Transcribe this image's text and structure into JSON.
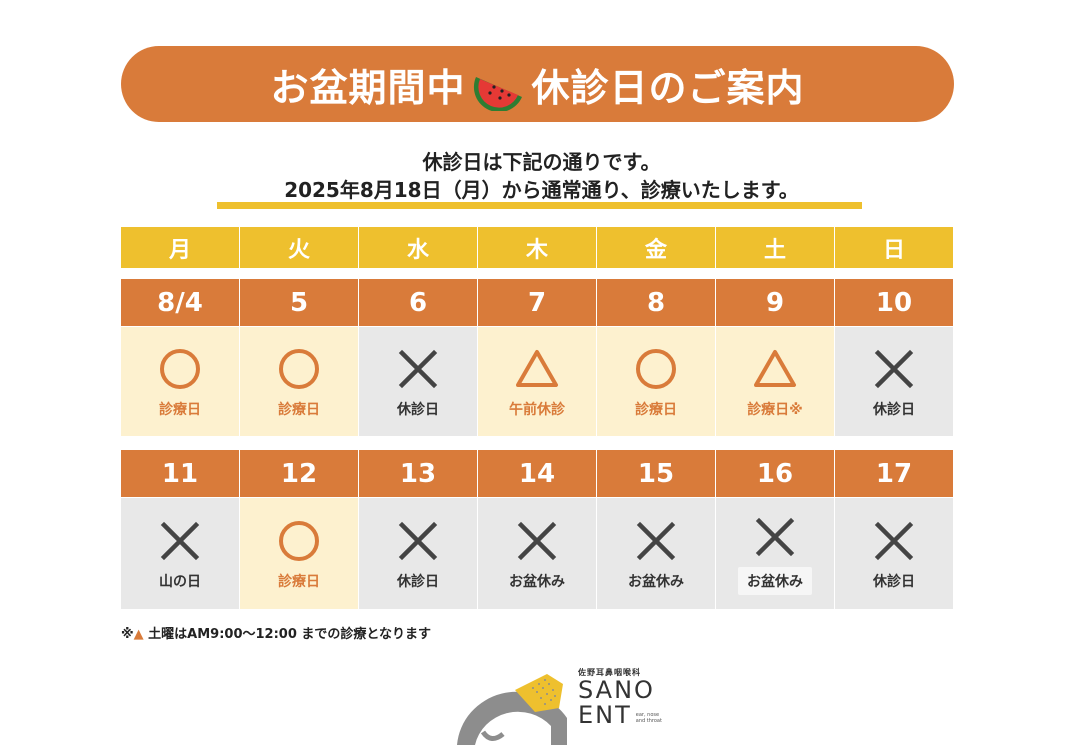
{
  "banner": {
    "title_before": "お盆期間中",
    "title_after": "休診日のご案内",
    "icon": "watermelon-icon",
    "color": "#d97b3a"
  },
  "intro": {
    "line1": "休診日は下記の通りです。",
    "line2": "2025年8月18日（月）から通常通り、診療いたします。"
  },
  "weekdays": [
    "月",
    "火",
    "水",
    "木",
    "金",
    "土",
    "日"
  ],
  "weeks": [
    {
      "dates": [
        "8/4",
        "5",
        "6",
        "7",
        "8",
        "9",
        "10"
      ],
      "status": [
        {
          "symbol": "circle",
          "label": "診療日",
          "type": "open"
        },
        {
          "symbol": "circle",
          "label": "診療日",
          "type": "open"
        },
        {
          "symbol": "cross",
          "label": "休診日",
          "type": "closed"
        },
        {
          "symbol": "triangle",
          "label": "午前休診",
          "type": "open"
        },
        {
          "symbol": "circle",
          "label": "診療日",
          "type": "open"
        },
        {
          "symbol": "triangle",
          "label": "診療日※",
          "type": "open"
        },
        {
          "symbol": "cross",
          "label": "休診日",
          "type": "closed"
        }
      ]
    },
    {
      "dates": [
        "11",
        "12",
        "13",
        "14",
        "15",
        "16",
        "17"
      ],
      "status": [
        {
          "symbol": "cross",
          "label": "山の日",
          "type": "closed"
        },
        {
          "symbol": "circle",
          "label": "診療日",
          "type": "open"
        },
        {
          "symbol": "cross",
          "label": "休診日",
          "type": "closed"
        },
        {
          "symbol": "cross",
          "label": "お盆休み",
          "type": "closed"
        },
        {
          "symbol": "cross",
          "label": "お盆休み",
          "type": "closed"
        },
        {
          "symbol": "cross",
          "label": "お盆休み",
          "type": "closed"
        },
        {
          "symbol": "cross",
          "label": "休診日",
          "type": "closed"
        }
      ]
    }
  ],
  "note": {
    "prefix": "※",
    "symbol": "▲",
    "text": " 土曜はAM9:00〜12:00 までの診療となります"
  },
  "logo": {
    "subtitle": "佐野耳鼻咽喉科",
    "line1": "SANO",
    "line2": "ENT",
    "small1": "ear, nose",
    "small2": "and throat"
  },
  "colors": {
    "orange": "#d97b3a",
    "yellow": "#eec02e",
    "open_bg": "#fdf1cf",
    "closed_bg": "#e8e8e8"
  }
}
